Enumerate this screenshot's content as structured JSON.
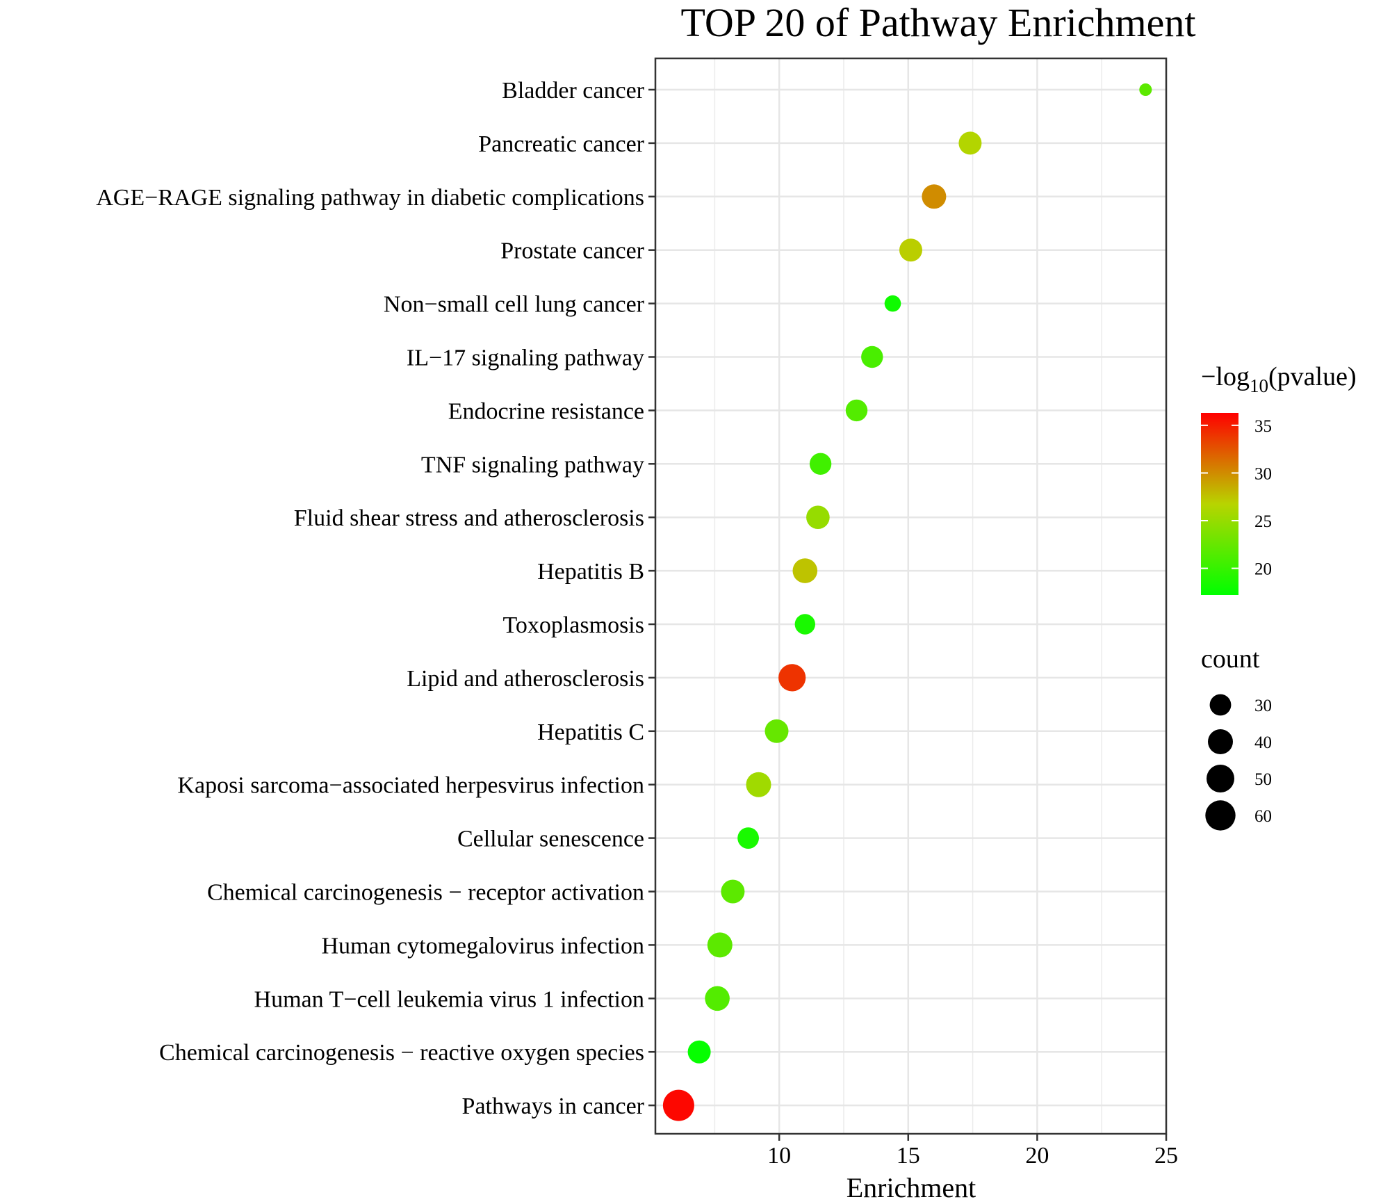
{
  "chart_data": {
    "type": "scatter",
    "title": "TOP 20 of Pathway Enrichment",
    "xlabel": "Enrichment",
    "ylabel": "",
    "xlim": [
      5.2,
      25.0
    ],
    "x_ticks": [
      10,
      15,
      20,
      25
    ],
    "grid": true,
    "categories": [
      "Bladder cancer",
      "Pancreatic cancer",
      "AGE−RAGE signaling pathway in diabetic complications",
      "Prostate cancer",
      "Non−small cell lung cancer",
      "IL−17 signaling pathway",
      "Endocrine resistance",
      "TNF signaling pathway",
      "Fluid shear stress and atherosclerosis",
      "Hepatitis B",
      "Toxoplasmosis",
      "Lipid and atherosclerosis",
      "Hepatitis C",
      "Kaposi sarcoma−associated herpesvirus infection",
      "Cellular senescence",
      "Chemical carcinogenesis − receptor activation",
      "Human cytomegalovirus infection",
      "Human T−cell leukemia virus 1 infection",
      "Chemical carcinogenesis − reactive oxygen species",
      "Pathways in cancer"
    ],
    "series": [
      {
        "name": "Enrichment",
        "values": [
          24.2,
          17.4,
          16.0,
          15.1,
          14.4,
          13.6,
          13.0,
          11.6,
          11.5,
          11.0,
          11.0,
          10.5,
          9.9,
          9.2,
          8.8,
          8.2,
          7.7,
          7.6,
          6.9,
          6.1
        ]
      },
      {
        "name": "count",
        "values": [
          20,
          34,
          38,
          34,
          22,
          31,
          31,
          31,
          35,
          39,
          28,
          48,
          36,
          40,
          30,
          36,
          40,
          39,
          34,
          65
        ]
      },
      {
        "name": "-log10(pvalue)",
        "values": [
          22,
          26.5,
          30,
          27,
          18,
          21,
          21.5,
          20.5,
          25,
          27.5,
          18.5,
          34,
          22.5,
          25.5,
          18.5,
          22,
          22,
          21.5,
          17.5,
          36
        ]
      }
    ],
    "legend": {
      "color": {
        "title_prefix": "−log",
        "title_sub": "10",
        "title_suffix": "(pvalue)",
        "ticks": [
          20,
          25,
          30,
          35
        ],
        "range": [
          17.2,
          36.3
        ],
        "colors": {
          "low": "#00ff00",
          "mid": "#b8d400",
          "high": "#ff0000"
        }
      },
      "size": {
        "title": "count",
        "ticks": [
          30,
          40,
          50,
          60
        ]
      },
      "placement": "right"
    }
  }
}
